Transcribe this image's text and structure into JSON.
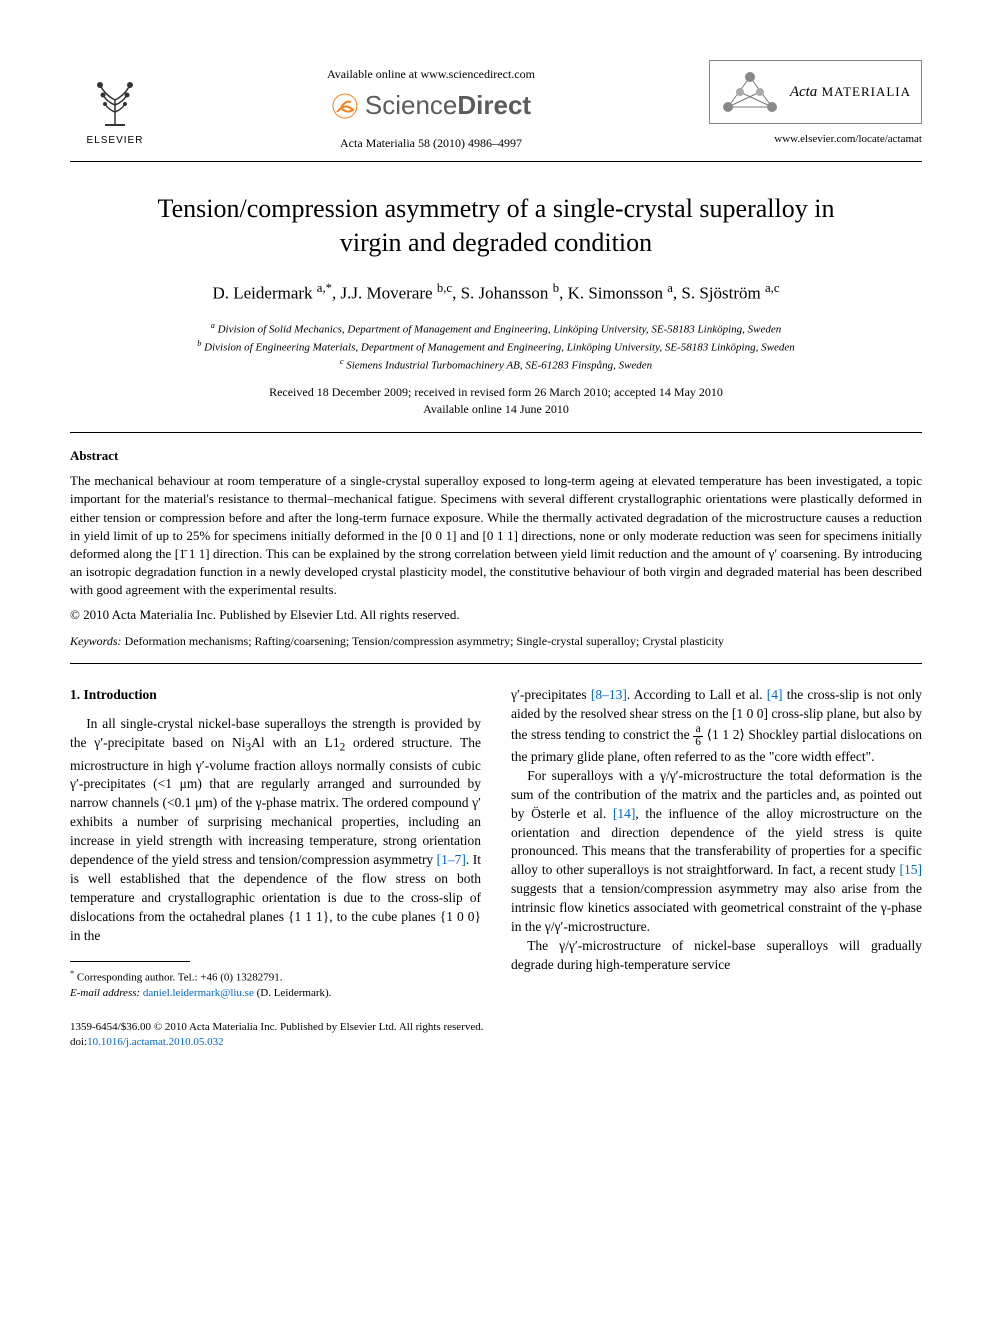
{
  "header": {
    "elsevier_label": "ELSEVIER",
    "available_online": "Available online at www.sciencedirect.com",
    "sciencedirect_text_prefix": "Science",
    "sciencedirect_text_suffix": "Direct",
    "journal_ref": "Acta Materialia 58 (2010) 4986–4997",
    "journal_logo_text_ital": "Acta",
    "journal_logo_text_caps": " MATERIALIA",
    "journal_url": "www.elsevier.com/locate/actamat"
  },
  "article": {
    "title": "Tension/compression asymmetry of a single-crystal superalloy in virgin and degraded condition",
    "authors_html": "D. Leidermark <sup>a,*</sup>, J.J. Moverare <sup>b,c</sup>, S. Johansson <sup>b</sup>, K. Simonsson <sup>a</sup>, S. Sjöström <sup>a,c</sup>",
    "affiliations": {
      "a": "Division of Solid Mechanics, Department of Management and Engineering, Linköping University, SE-58183 Linköping, Sweden",
      "b": "Division of Engineering Materials, Department of Management and Engineering, Linköping University, SE-58183 Linköping, Sweden",
      "c": "Siemens Industrial Turbomachinery AB, SE-61283 Finspång, Sweden"
    },
    "dates_line1": "Received 18 December 2009; received in revised form 26 March 2010; accepted 14 May 2010",
    "dates_line2": "Available online 14 June 2010"
  },
  "abstract": {
    "heading": "Abstract",
    "body": "The mechanical behaviour at room temperature of a single-crystal superalloy exposed to long-term ageing at elevated temperature has been investigated, a topic important for the material's resistance to thermal–mechanical fatigue. Specimens with several different crystallographic orientations were plastically deformed in either tension or compression before and after the long-term furnace exposure. While the thermally activated degradation of the microstructure causes a reduction in yield limit of up to 25% for specimens initially deformed in the [0 0 1] and [0 1 1] directions, none or only moderate reduction was seen for specimens initially deformed along the [1̄ 1 1] direction. This can be explained by the strong correlation between yield limit reduction and the amount of γ′ coarsening. By introducing an isotropic degradation function in a newly developed crystal plasticity model, the constitutive behaviour of both virgin and degraded material has been described with good agreement with the experimental results.",
    "copyright": "© 2010 Acta Materialia Inc. Published by Elsevier Ltd. All rights reserved."
  },
  "keywords": {
    "label": "Keywords:",
    "text": " Deformation mechanisms; Rafting/coarsening; Tension/compression asymmetry; Single-crystal superalloy; Crystal plasticity"
  },
  "section1": {
    "heading": "1. Introduction",
    "left_p1_a": "In all single-crystal nickel-base superalloys the strength is provided by the γ′-precipitate based on Ni",
    "left_p1_b": "Al with an L1",
    "left_p1_c": " ordered structure. The microstructure in high γ′-volume fraction alloys normally consists of cubic γ′-precipitates (<1 μm) that are regularly arranged and surrounded by narrow channels (<0.1 μm) of the γ-phase matrix. The ordered compound γ′ exhibits a number of surprising mechanical properties, including an increase in yield strength with increasing temperature, strong orientation dependence of the yield stress and tension/compression asymmetry ",
    "left_ref1": "[1–7]",
    "left_p1_d": ". It is well established that the dependence of the flow stress on both temperature and crystallographic orientation is due to the cross-slip of dislocations from the octahedral planes {1 1 1}, to the cube planes {1 0 0} in the",
    "right_p1_a": "γ′-precipitates ",
    "right_ref2": "[8–13]",
    "right_p1_b": ". According to Lall et al. ",
    "right_ref3": "[4]",
    "right_p1_c": " the cross-slip is not only aided by the resolved shear stress on the [1 0 0] cross-slip plane, but also by the stress tending to constrict the ",
    "right_frac_num": "a",
    "right_frac_den": "6",
    "right_p1_d": "⟨1 1 2⟩ Shockley partial dislocations on the primary glide plane, often referred to as the \"core width effect\".",
    "right_p2_a": "For superalloys with a γ/γ′-microstructure the total deformation is the sum of the contribution of the matrix and the particles and, as pointed out by Österle et al. ",
    "right_ref4": "[14]",
    "right_p2_b": ", the influence of the alloy microstructure on the orientation and direction dependence of the yield stress is quite pronounced. This means that the transferability of properties for a specific alloy to other superalloys is not straightforward. In fact, a recent study ",
    "right_ref5": "[15]",
    "right_p2_c": " suggests that a tension/compression asymmetry may also arise from the intrinsic flow kinetics associated with geometrical constraint of the γ-phase in the γ/γ′-microstructure.",
    "right_p3": "The γ/γ′-microstructure of nickel-base superalloys will gradually degrade during high-temperature service"
  },
  "footnote": {
    "corr_label": "Corresponding author. Tel.: +46 (0) 13282791.",
    "email_label": "E-mail address:",
    "email": "daniel.leidermark@liu.se",
    "email_suffix": " (D. Leidermark)."
  },
  "footer": {
    "line1": "1359-6454/$36.00 © 2010 Acta Materialia Inc. Published by Elsevier Ltd. All rights reserved.",
    "doi_label": "doi:",
    "doi": "10.1016/j.actamat.2010.05.032"
  },
  "colors": {
    "link": "#0066cc",
    "text": "#000000",
    "sd_gray": "#5b5b5b",
    "sd_orange": "#f58220"
  }
}
